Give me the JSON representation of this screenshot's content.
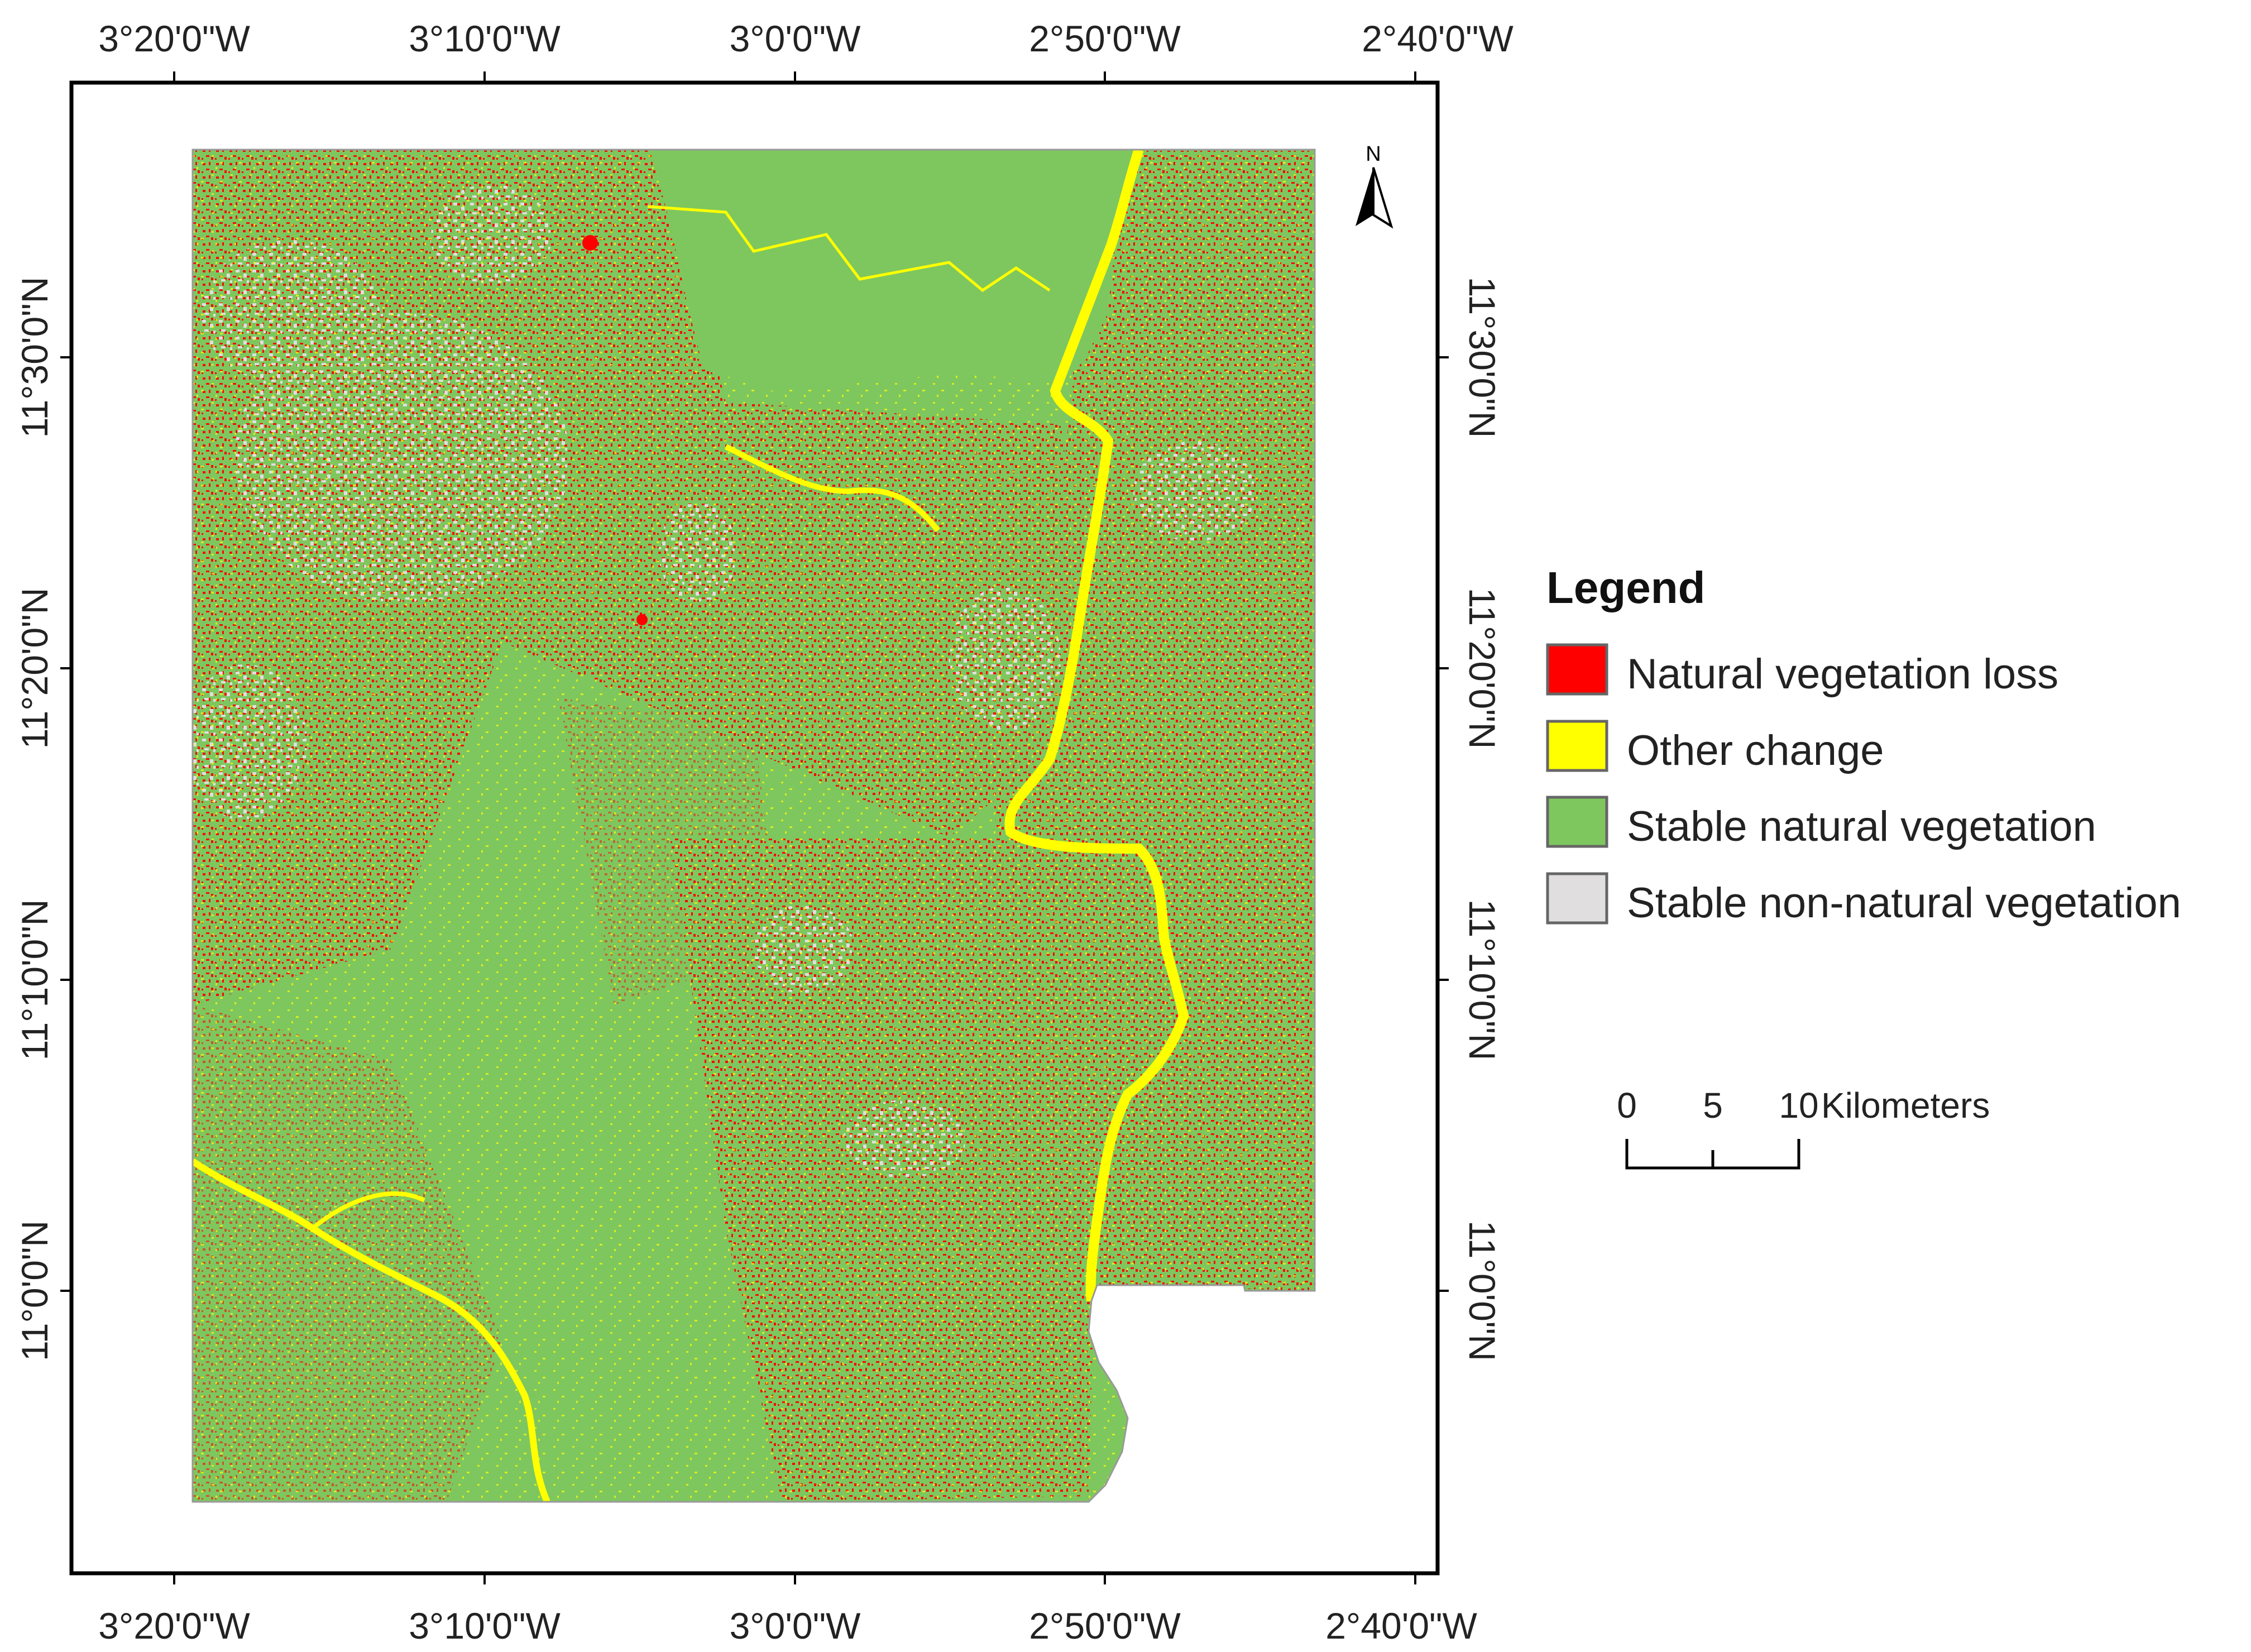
{
  "map": {
    "graticule": {
      "longitude_labels": [
        "3°20'0\"W",
        "3°10'0\"W",
        "3°0'0\"W",
        "2°50'0\"W",
        "2°40'0\"W"
      ],
      "latitude_labels": [
        "11°30'0\"N",
        "11°20'0\"N",
        "11°10'0\"N",
        "11°0'0\"N"
      ]
    },
    "north_arrow": {
      "label": "N"
    },
    "legend": {
      "title": "Legend",
      "items": [
        {
          "label": "Natural vegetation loss",
          "color": "#ff0000"
        },
        {
          "label": "Other change",
          "color": "#ffff00"
        },
        {
          "label": "Stable natural vegetation",
          "color": "#7ec75e"
        },
        {
          "label": "Stable non-natural vegetation",
          "color": "#e0dede"
        }
      ]
    },
    "scale_bar": {
      "ticks": [
        "0",
        "5",
        "10"
      ],
      "unit": "Kilometers"
    },
    "colors": {
      "loss": "#ff0000",
      "other_change": "#ffff00",
      "stable_natural": "#7ec75e",
      "stable_non_natural": "#e0dede"
    }
  }
}
